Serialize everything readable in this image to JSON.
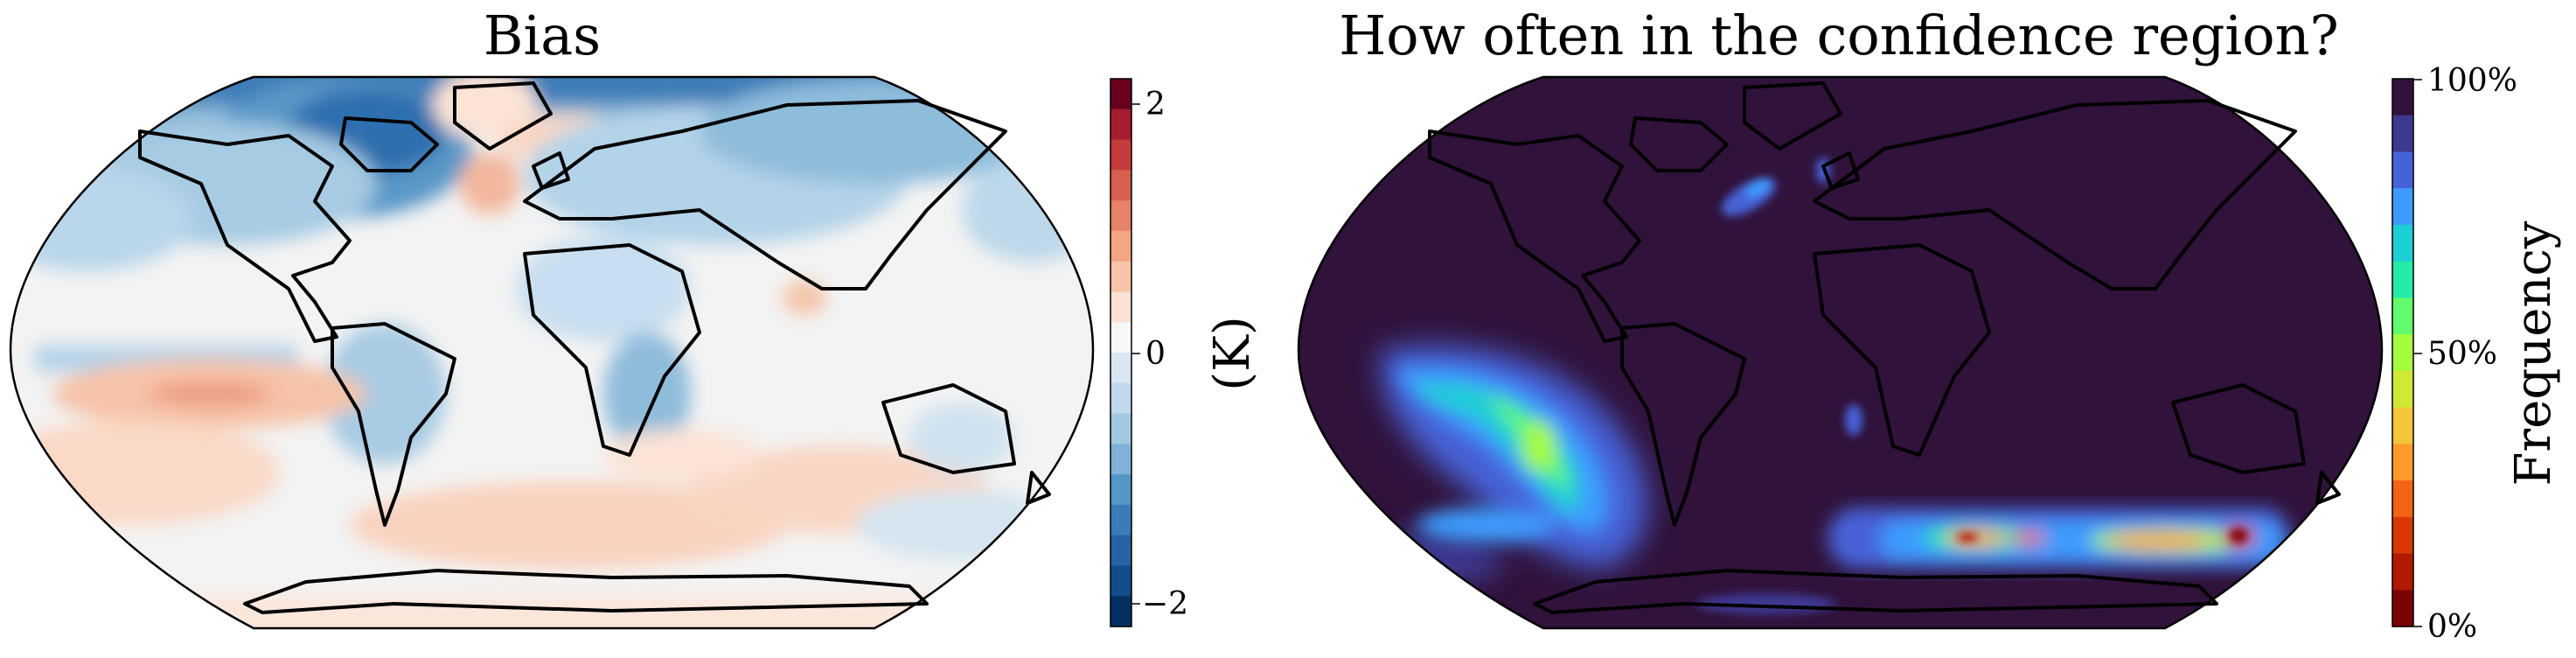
{
  "panels": [
    {
      "title": "Bias",
      "colorbar": {
        "label": "(K)",
        "ticks": [
          "2",
          "0",
          "−2"
        ],
        "colors": [
          "#67001f",
          "#a51d2e",
          "#c43c3c",
          "#d6604d",
          "#e58268",
          "#f4a582",
          "#f8c4a8",
          "#fbe1d3",
          "#f7f7f7",
          "#d8e7f1",
          "#c0d9ea",
          "#a3c9e1",
          "#7fb2d6",
          "#5496c7",
          "#3a7cb8",
          "#2664a5",
          "#124c8a",
          "#053061"
        ]
      }
    },
    {
      "title": "How often in the confidence region?",
      "colorbar": {
        "label": "Frequency",
        "ticks": [
          "100%",
          "50%",
          "0%"
        ],
        "colors": [
          "#30123b",
          "#3e3891",
          "#4662d7",
          "#3e9bfe",
          "#1bcfd4",
          "#24eca6",
          "#61fc6c",
          "#a4fc3c",
          "#d1e834",
          "#f3c63a",
          "#fe9b2d",
          "#f36315",
          "#d93806",
          "#b11901",
          "#7a0403"
        ]
      }
    }
  ]
}
